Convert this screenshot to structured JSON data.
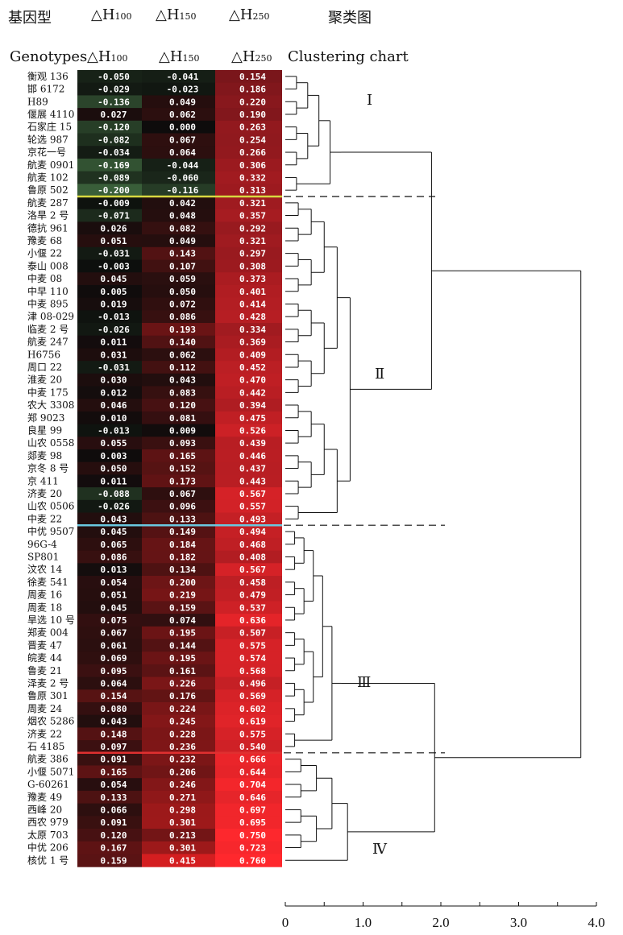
{
  "chart_data": {
    "type": "heatmap",
    "title_cn": "基因型",
    "headers_cn": [
      "基因型",
      "△H100",
      "△H150",
      "△H250",
      "聚类图"
    ],
    "headers_en": [
      "Genotypes",
      "△H100",
      "△H150",
      "△H250",
      "Clustering chart"
    ],
    "columns": [
      "△H100",
      "△H150",
      "△H250"
    ],
    "genotypes": [
      "衡观 136",
      "邯 6172",
      "H89",
      "偃展 4110",
      "石家庄 15",
      "轮选 987",
      "京花一号",
      "航麦 0901",
      "航麦 102",
      "鲁原 502",
      "航麦 287",
      "洛旱 2 号",
      "德抗 961",
      "豫麦 68",
      "小偃 22",
      "泰山 008",
      "中麦 08",
      "中早 110",
      "中麦 895",
      "津 08-029",
      "临麦 2 号",
      "航麦 247",
      "H6756",
      "周口 22",
      "淮麦 20",
      "中麦 175",
      "农大 3308",
      "郑 9023",
      "良星 99",
      "山农 0558",
      "郯麦 98",
      "京冬 8 号",
      "京 411",
      "济麦 20",
      "山农 0506",
      "中麦 22",
      "中优 9507",
      "96G-4",
      "SP801",
      "汶农 14",
      "徐麦 541",
      "周麦 16",
      "周麦 18",
      "旱选 10 号",
      "郑麦 004",
      "晋麦 47",
      "皖麦 44",
      "鲁麦 21",
      "泽麦 2 号",
      "鲁原 301",
      "周麦 24",
      "烟农 5286",
      "济麦 22",
      "石 4185",
      "航麦 386",
      "小偃 5071",
      "G-60261",
      "豫麦 49",
      "西峰 20",
      "西农 979",
      "太原 703",
      "中优 206",
      "核优 1 号"
    ],
    "values": [
      [
        "-0.050",
        "-0.041",
        "0.154"
      ],
      [
        "-0.029",
        "-0.023",
        "0.186"
      ],
      [
        "-0.136",
        "0.049",
        "0.220"
      ],
      [
        "0.027",
        "0.062",
        "0.190"
      ],
      [
        "-0.120",
        "0.000",
        "0.263"
      ],
      [
        "-0.082",
        "0.067",
        "0.254"
      ],
      [
        "-0.034",
        "0.064",
        "0.266"
      ],
      [
        "-0.169",
        "-0.044",
        "0.306"
      ],
      [
        "-0.089",
        "-0.060",
        "0.332"
      ],
      [
        "-0.200",
        "-0.116",
        "0.313"
      ],
      [
        "-0.009",
        "0.042",
        "0.321"
      ],
      [
        "-0.071",
        "0.048",
        "0.357"
      ],
      [
        "0.026",
        "0.082",
        "0.292"
      ],
      [
        "0.051",
        "0.049",
        "0.321"
      ],
      [
        "-0.031",
        "0.143",
        "0.297"
      ],
      [
        "-0.003",
        "0.107",
        "0.308"
      ],
      [
        "0.045",
        "0.059",
        "0.373"
      ],
      [
        "0.005",
        "0.050",
        "0.401"
      ],
      [
        "0.019",
        "0.072",
        "0.414"
      ],
      [
        "-0.013",
        "0.086",
        "0.428"
      ],
      [
        "-0.026",
        "0.193",
        "0.334"
      ],
      [
        "0.011",
        "0.140",
        "0.369"
      ],
      [
        "0.031",
        "0.062",
        "0.409"
      ],
      [
        "-0.031",
        "0.112",
        "0.452"
      ],
      [
        "0.030",
        "0.043",
        "0.470"
      ],
      [
        "0.012",
        "0.083",
        "0.442"
      ],
      [
        "0.046",
        "0.120",
        "0.394"
      ],
      [
        "0.010",
        "0.081",
        "0.475"
      ],
      [
        "-0.013",
        "0.009",
        "0.526"
      ],
      [
        "0.055",
        "0.093",
        "0.439"
      ],
      [
        "0.003",
        "0.165",
        "0.446"
      ],
      [
        "0.050",
        "0.152",
        "0.437"
      ],
      [
        "0.011",
        "0.173",
        "0.443"
      ],
      [
        "-0.088",
        "0.067",
        "0.567"
      ],
      [
        "-0.026",
        "0.096",
        "0.557"
      ],
      [
        "0.043",
        "0.133",
        "0.493"
      ],
      [
        "0.045",
        "0.149",
        "0.494"
      ],
      [
        "0.065",
        "0.184",
        "0.468"
      ],
      [
        "0.086",
        "0.182",
        "0.408"
      ],
      [
        "0.013",
        "0.134",
        "0.567"
      ],
      [
        "0.054",
        "0.200",
        "0.458"
      ],
      [
        "0.051",
        "0.219",
        "0.479"
      ],
      [
        "0.045",
        "0.159",
        "0.537"
      ],
      [
        "0.075",
        "0.074",
        "0.636"
      ],
      [
        "0.067",
        "0.195",
        "0.507"
      ],
      [
        "0.061",
        "0.144",
        "0.575"
      ],
      [
        "0.069",
        "0.195",
        "0.574"
      ],
      [
        "0.095",
        "0.161",
        "0.568"
      ],
      [
        "0.064",
        "0.226",
        "0.496"
      ],
      [
        "0.154",
        "0.176",
        "0.569"
      ],
      [
        "0.080",
        "0.224",
        "0.602"
      ],
      [
        "0.043",
        "0.245",
        "0.619"
      ],
      [
        "0.148",
        "0.228",
        "0.575"
      ],
      [
        "0.097",
        "0.236",
        "0.540"
      ],
      [
        "0.091",
        "0.232",
        "0.666"
      ],
      [
        "0.165",
        "0.206",
        "0.644"
      ],
      [
        "0.054",
        "0.246",
        "0.704"
      ],
      [
        "0.133",
        "0.271",
        "0.646"
      ],
      [
        "0.066",
        "0.298",
        "0.697"
      ],
      [
        "0.091",
        "0.301",
        "0.695"
      ],
      [
        "0.120",
        "0.213",
        "0.750"
      ],
      [
        "0.167",
        "0.301",
        "0.723"
      ],
      [
        "0.159",
        "0.415",
        "0.760"
      ]
    ],
    "clusters": [
      {
        "label": "Ⅰ",
        "start": 0,
        "end": 9,
        "merge_height": 0.72
      },
      {
        "label": "Ⅱ",
        "start": 10,
        "end": 35,
        "merge_height": 1.0
      },
      {
        "label": "Ⅲ",
        "start": 36,
        "end": 53,
        "merge_height": 0.72
      },
      {
        "label": "Ⅳ",
        "start": 54,
        "end": 62,
        "merge_height": 1.0
      }
    ],
    "upper_merges": {
      "I_II": 1.88,
      "III_IV": 1.92,
      "all": 3.8
    },
    "x_axis": {
      "ticks": [
        "0",
        "1.0",
        "2.0",
        "3.0",
        "4.0"
      ],
      "range": [
        0,
        4.0
      ]
    },
    "colors": {
      "negative": "#3a6b3a",
      "zero": "#0a0a0a",
      "positive": "#ff2a2a",
      "sep_I_II": "#d8d840",
      "sep_II_III": "#6ac8e0",
      "sep_III_IV": "#e03030"
    }
  }
}
